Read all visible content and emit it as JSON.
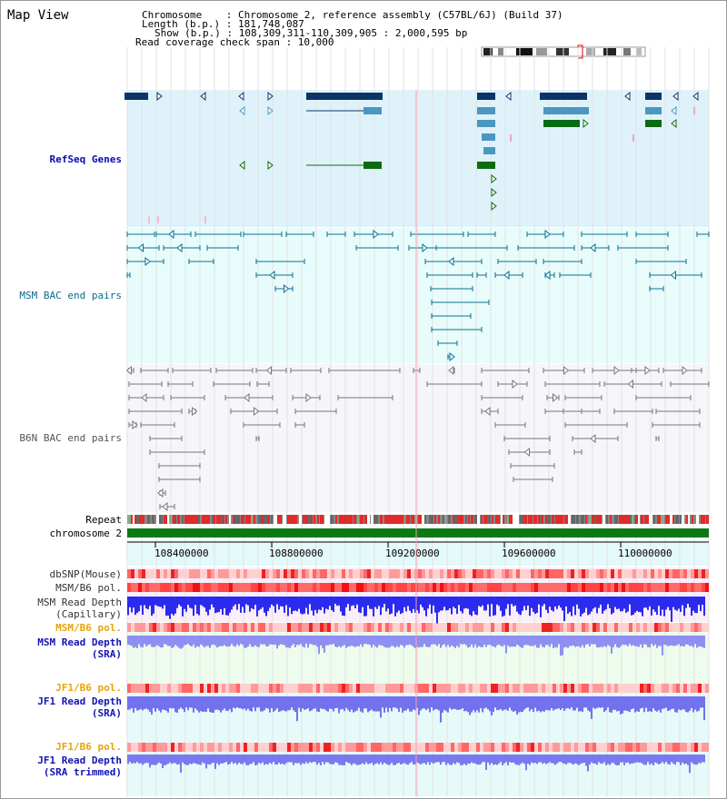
{
  "title": "Map View",
  "info": {
    "chromosome": "Chromosome    : Chromosome 2, reference assembly (C57BL/6J) (Build 37)",
    "length": "Length (b.p.) : 181,748,087",
    "show": "Show (b.p.) : 108,309,311-110,309,905 : 2,000,595 bp",
    "coverage": "Read coverage check span : 10,000"
  },
  "colors": {
    "refseq_bg": "#dff2fa",
    "refseq_dark": "#0c3466",
    "refseq_light": "#4a97c0",
    "refseq_green": "#0b6b12",
    "msm_track": "#0a7090",
    "b6n_track": "#777777",
    "repeat_red": "#e12a2a",
    "chromosome_green": "#0b7a14",
    "axis_bg": "#e4f9f9",
    "read_depth_blue": "#2b2bf0",
    "read_depth_light": "#8f8ff2"
  },
  "tracks": {
    "refseq": "RefSeq Genes",
    "msm_bac": "MSM BAC end pairs",
    "b6n_bac": "B6N BAC end pairs",
    "repeat": "Repeat",
    "chromosome": "chromosome 2"
  },
  "axis_ticks": [
    "108400000",
    "108800000",
    "109200000",
    "109600000",
    "110000000"
  ],
  "bottom_tracks": {
    "dbsnp": "dbSNP(Mouse)",
    "msm_b6_pol_1": "MSM/B6 pol.",
    "msm_depth_cap_1": "MSM Read Depth",
    "msm_depth_cap_2": "(Capillary)",
    "msm_b6_pol_2": "MSM/B6 pol.",
    "msm_depth_sra_1": "MSM Read Depth",
    "msm_depth_sra_2": "(SRA)",
    "jf1_b6_pol_1": "JF1/B6 pol.",
    "jf1_depth_sra_1": "JF1 Read Depth",
    "jf1_depth_sra_2": "(SRA)",
    "jf1_b6_pol_2": "JF1/B6 pol.",
    "jf1_depth_trim_1": "JF1 Read Depth",
    "jf1_depth_trim_2": "(SRA trimmed)"
  }
}
